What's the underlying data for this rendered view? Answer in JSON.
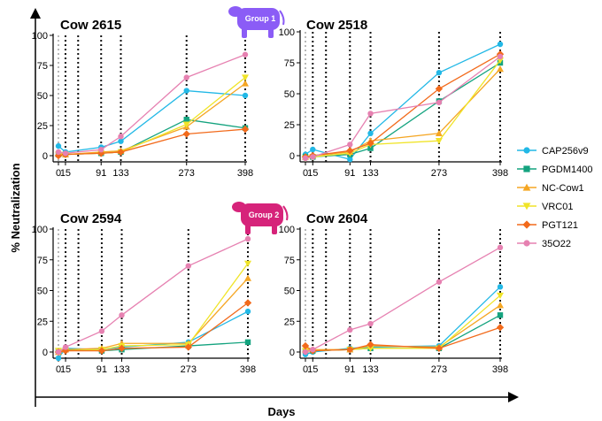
{
  "figure": {
    "ylabel": "% Neutralization",
    "xlabel": "Days",
    "groups": [
      {
        "label": "Group 1",
        "color": "#8b5cf6"
      },
      {
        "label": "Group 2",
        "color": "#d6237a"
      }
    ]
  },
  "chart_data": [
    {
      "type": "line",
      "title": "Cow 2615",
      "group": "Group 1",
      "x": [
        0,
        15,
        91,
        133,
        273,
        398
      ],
      "xtick_labels": [
        "0",
        "15",
        "91",
        "133",
        "273",
        "398"
      ],
      "ylim": [
        0,
        100
      ],
      "yticks": [
        0,
        25,
        50,
        75,
        100
      ],
      "vlines": [
        0,
        15,
        42,
        91,
        133,
        273,
        398
      ],
      "series": [
        {
          "name": "CAP256v9",
          "values": [
            8,
            3,
            7,
            12,
            54,
            50
          ]
        },
        {
          "name": "PGDM1400",
          "values": [
            1,
            1,
            2,
            3,
            30,
            23
          ]
        },
        {
          "name": "NC-Cow1",
          "values": [
            2,
            1,
            3,
            4,
            24,
            60
          ]
        },
        {
          "name": "VRC01",
          "values": [
            1,
            1,
            2,
            3,
            26,
            65
          ]
        },
        {
          "name": "PGT121",
          "values": [
            0,
            1,
            2,
            3,
            18,
            22
          ]
        },
        {
          "name": "35O22",
          "values": [
            3,
            2,
            5,
            16,
            65,
            84
          ]
        }
      ]
    },
    {
      "type": "line",
      "title": "Cow 2518",
      "group": "Group 1",
      "x": [
        0,
        15,
        91,
        133,
        273,
        398
      ],
      "xtick_labels": [
        "0",
        "15",
        "91",
        "133",
        "273",
        "398"
      ],
      "ylim": [
        0,
        100
      ],
      "yticks": [
        0,
        25,
        50,
        75,
        100
      ],
      "vlines": [
        0,
        15,
        42,
        91,
        133,
        273,
        398
      ],
      "series": [
        {
          "name": "CAP256v9",
          "values": [
            1,
            5,
            -3,
            18,
            67,
            90
          ]
        },
        {
          "name": "PGDM1400",
          "values": [
            -1,
            -1,
            1,
            6,
            44,
            75
          ]
        },
        {
          "name": "NC-Cow1",
          "values": [
            -1,
            0,
            3,
            12,
            18,
            70
          ]
        },
        {
          "name": "VRC01",
          "values": [
            -2,
            -1,
            2,
            9,
            12,
            77
          ]
        },
        {
          "name": "PGT121",
          "values": [
            -1,
            0,
            4,
            10,
            54,
            82
          ]
        },
        {
          "name": "35O22",
          "values": [
            -2,
            -1,
            9,
            34,
            43,
            80
          ]
        }
      ]
    },
    {
      "type": "line",
      "title": "Cow 2594",
      "group": "Group 2",
      "x": [
        0,
        15,
        91,
        133,
        273,
        398
      ],
      "xtick_labels": [
        "0",
        "15",
        "91",
        "133",
        "273",
        "398"
      ],
      "ylim": [
        0,
        100
      ],
      "yticks": [
        0,
        25,
        50,
        75,
        100
      ],
      "vlines": [
        0,
        15,
        42,
        91,
        133,
        273,
        398
      ],
      "series": [
        {
          "name": "CAP256v9",
          "values": [
            -5,
            3,
            2,
            4,
            8,
            33
          ]
        },
        {
          "name": "PGDM1400",
          "values": [
            1,
            2,
            1,
            2,
            5,
            8
          ]
        },
        {
          "name": "NC-Cow1",
          "values": [
            0,
            2,
            3,
            7,
            7,
            60
          ]
        },
        {
          "name": "VRC01",
          "values": [
            1,
            1,
            2,
            5,
            6,
            72
          ]
        },
        {
          "name": "PGT121",
          "values": [
            0,
            1,
            1,
            3,
            4,
            40
          ]
        },
        {
          "name": "35O22",
          "values": [
            0,
            4,
            17,
            30,
            70,
            92
          ]
        }
      ]
    },
    {
      "type": "line",
      "title": "Cow 2604",
      "group": "Group 2",
      "x": [
        0,
        15,
        91,
        133,
        273,
        398
      ],
      "xtick_labels": [
        "0",
        "15",
        "91",
        "133",
        "273",
        "398"
      ],
      "ylim": [
        0,
        100
      ],
      "yticks": [
        0,
        25,
        50,
        75,
        100
      ],
      "vlines": [
        0,
        15,
        42,
        91,
        133,
        273,
        398
      ],
      "series": [
        {
          "name": "CAP256v9",
          "values": [
            -2,
            0,
            3,
            4,
            5,
            53
          ]
        },
        {
          "name": "PGDM1400",
          "values": [
            1,
            1,
            2,
            3,
            3,
            30
          ]
        },
        {
          "name": "NC-Cow1",
          "values": [
            2,
            2,
            2,
            5,
            4,
            38
          ]
        },
        {
          "name": "VRC01",
          "values": [
            1,
            1,
            2,
            3,
            3,
            46
          ]
        },
        {
          "name": "PGT121",
          "values": [
            5,
            1,
            2,
            6,
            3,
            20
          ]
        },
        {
          "name": "35O22",
          "values": [
            0,
            2,
            18,
            23,
            57,
            85
          ]
        }
      ]
    }
  ],
  "legend": {
    "items": [
      {
        "name": "CAP256v9",
        "color": "#22b8e6",
        "marker": "circle"
      },
      {
        "name": "PGDM1400",
        "color": "#14a37f",
        "marker": "square"
      },
      {
        "name": "NC-Cow1",
        "color": "#f5a623",
        "marker": "triangle-up"
      },
      {
        "name": "VRC01",
        "color": "#f0e428",
        "marker": "triangle-down"
      },
      {
        "name": "PGT121",
        "color": "#f26a1b",
        "marker": "diamond"
      },
      {
        "name": "35O22",
        "color": "#e681b1",
        "marker": "circle"
      }
    ]
  }
}
